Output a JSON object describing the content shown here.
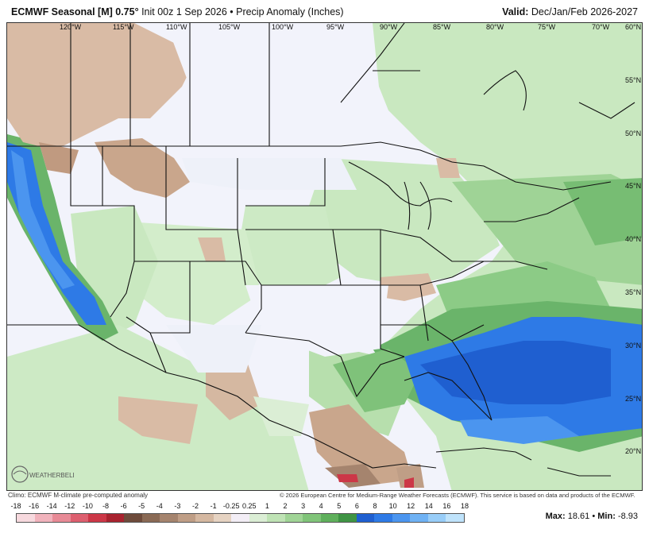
{
  "header": {
    "title_bold": "ECMWF Seasonal [M] 0.75°",
    "title_rest": " Init 00z 1 Sep 2026 • Precip Anomaly (Inches)",
    "valid_label": "Valid:",
    "valid_value": " Dec/Jan/Feb 2026-2027"
  },
  "map": {
    "lon_labels": [
      "120°W",
      "115°W",
      "110°W",
      "105°W",
      "100°W",
      "95°W",
      "90°W",
      "85°W",
      "80°W",
      "75°W",
      "70°W"
    ],
    "lat_labels": [
      "60°N",
      "55°N",
      "50°N",
      "45°N",
      "40°N",
      "35°N",
      "30°N",
      "25°N",
      "20°N"
    ],
    "logo_text": "WEATHERBELL"
  },
  "footer": {
    "climo_note": "Climo: ECMWF M-climate pre-computed anomaly",
    "copyright": "© 2026 European Centre for Medium-Range Weather Forecasts (ECMWF). This service is based on data and products of the ECMWF.",
    "max_label": "Max:",
    "max_value": "18.61",
    "min_label": "Min:",
    "min_value": "-8.93"
  },
  "scale": {
    "ticks": [
      "-18",
      "-16",
      "-14",
      "-12",
      "-10",
      "-8",
      "-6",
      "-5",
      "-4",
      "-3",
      "-2",
      "-1",
      "-0.25",
      "0.25",
      "1",
      "2",
      "3",
      "4",
      "5",
      "6",
      "8",
      "10",
      "12",
      "14",
      "16",
      "18"
    ],
    "colors": [
      "#f7d9de",
      "#f1b3bc",
      "#e88a96",
      "#dd5f6f",
      "#cc3747",
      "#a8232f",
      "#6e4b3b",
      "#8a6a55",
      "#a5846e",
      "#bf9e86",
      "#d5b8a1",
      "#e6d3c2",
      "#f3eef6",
      "#dbeed5",
      "#bfe3b5",
      "#a0d496",
      "#80c479",
      "#5fb05c",
      "#3f9444",
      "#1f5fd0",
      "#2e7ae6",
      "#4b95ef",
      "#6fb2f4",
      "#98cdf8",
      "#bfe3fb"
    ]
  }
}
